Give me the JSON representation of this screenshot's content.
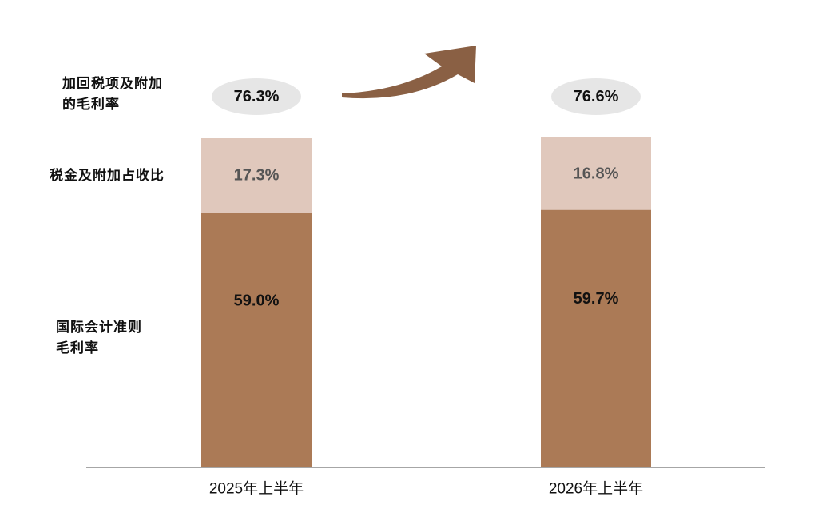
{
  "chart_data": {
    "type": "bar",
    "stacked": true,
    "categories": [
      "2025年上半年",
      "2026年上半年"
    ],
    "series": [
      {
        "name": "国际会计准则毛利率",
        "values": [
          59.0,
          59.7
        ],
        "labels": [
          "59.0%",
          "59.7%"
        ]
      },
      {
        "name": "税金及附加占收比",
        "values": [
          17.3,
          16.8
        ],
        "labels": [
          "17.3%",
          "16.8%"
        ]
      }
    ],
    "totals": {
      "name": "加回税项及附加的毛利率",
      "values": [
        76.3,
        76.6
      ],
      "labels": [
        "76.3%",
        "76.6%"
      ]
    },
    "colors": {
      "gross_margin": "#AB7A56",
      "tax_ratio": "#E0C8BC",
      "bubble": "#E6E6E6",
      "arrow": "#8A6044",
      "axis": "#888888"
    },
    "trend_arrow": "up-right"
  },
  "row_labels": {
    "total_line1": "加回税项及附加",
    "total_line2": "的毛利率",
    "tax": "税金及附加占收比",
    "margin_line1": "国际会计准则",
    "margin_line2": "毛利率"
  }
}
